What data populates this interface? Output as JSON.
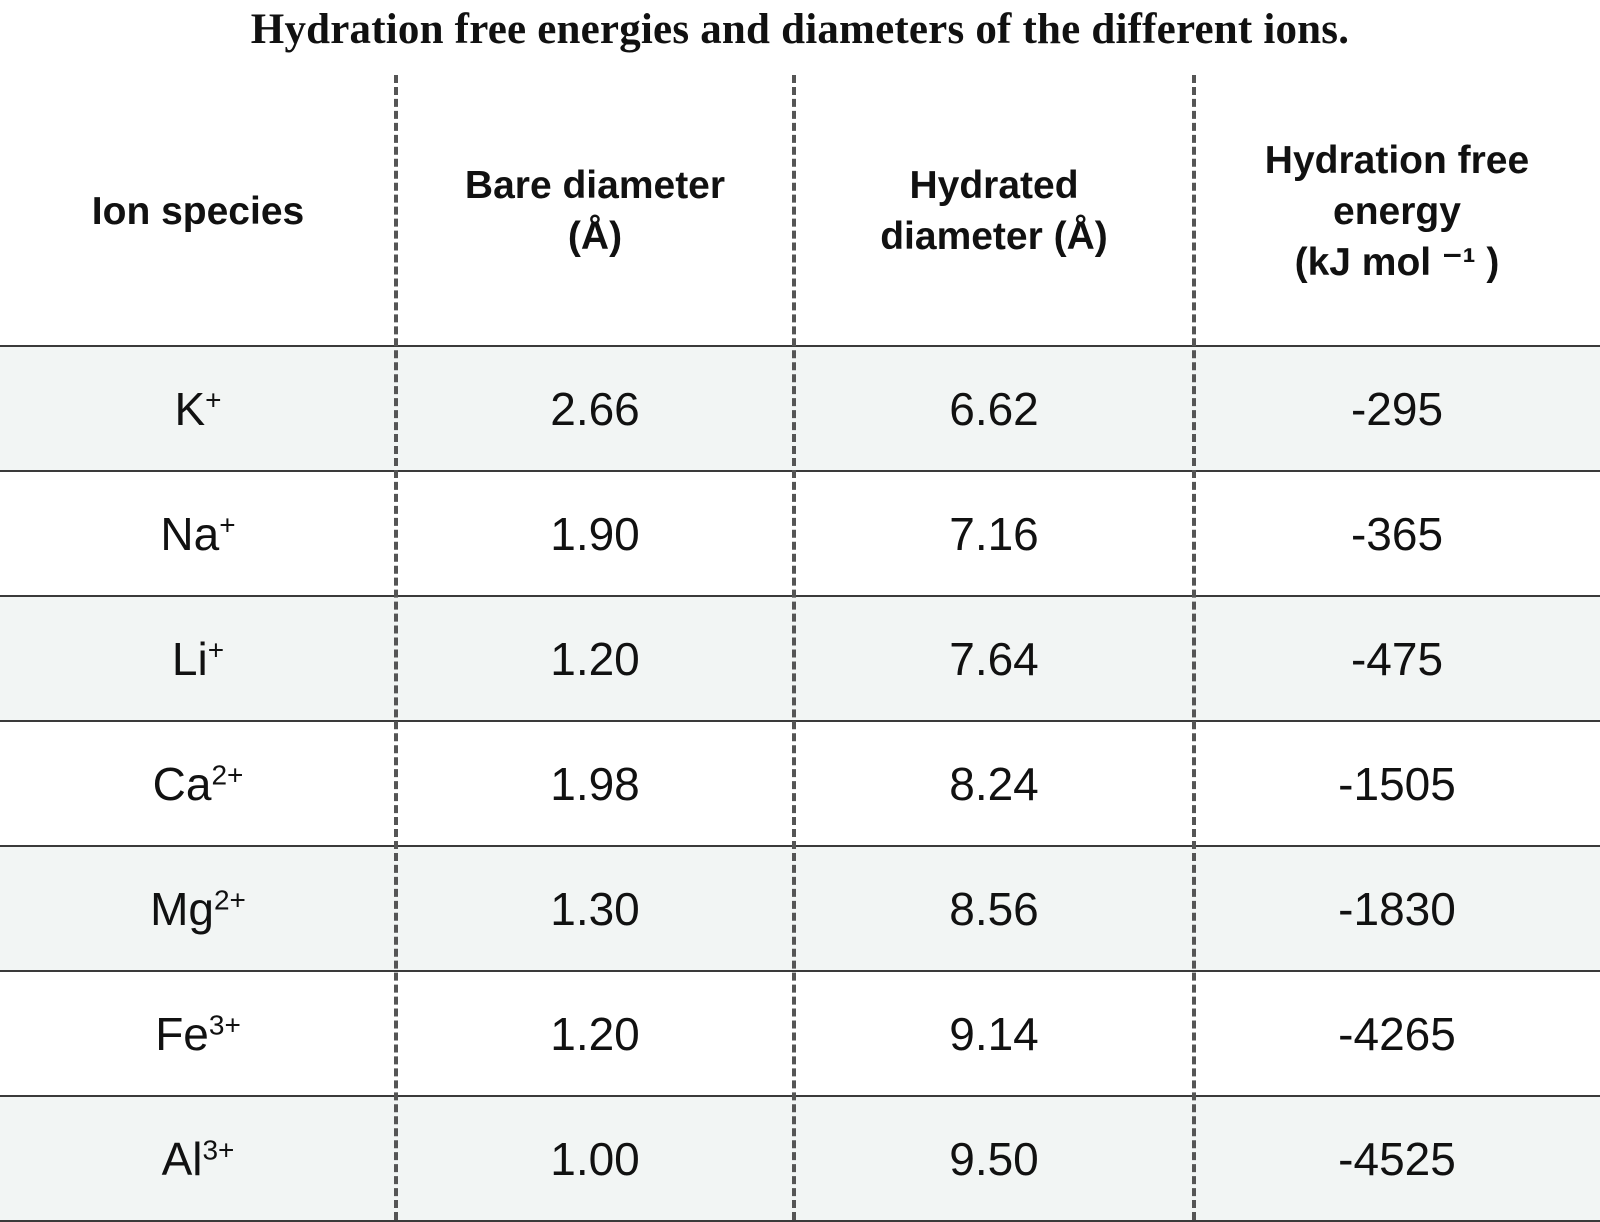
{
  "title": "Hydration free energies and diameters of the different ions.",
  "table": {
    "headers": [
      {
        "lines": [
          "Ion species"
        ]
      },
      {
        "lines": [
          "Bare diameter",
          "(Å)"
        ]
      },
      {
        "lines": [
          "Hydrated",
          "diameter (Å)"
        ]
      },
      {
        "lines": [
          "Hydration free",
          "energy",
          "(kJ mol ⁻¹ )"
        ]
      }
    ],
    "rows": [
      {
        "ion": "K",
        "charge": "+",
        "bare": "2.66",
        "hydrated": "6.62",
        "energy": "-295"
      },
      {
        "ion": "Na",
        "charge": "+",
        "bare": "1.90",
        "hydrated": "7.16",
        "energy": "-365"
      },
      {
        "ion": "Li",
        "charge": "+",
        "bare": "1.20",
        "hydrated": "7.64",
        "energy": "-475"
      },
      {
        "ion": "Ca",
        "charge": "2+",
        "bare": "1.98",
        "hydrated": "8.24",
        "energy": "-1505"
      },
      {
        "ion": "Mg",
        "charge": "2+",
        "bare": "1.30",
        "hydrated": "8.56",
        "energy": "-1830"
      },
      {
        "ion": "Fe",
        "charge": "3+",
        "bare": "1.20",
        "hydrated": "9.14",
        "energy": "-4265"
      },
      {
        "ion": "Al",
        "charge": "3+",
        "bare": "1.00",
        "hydrated": "9.50",
        "energy": "-4525"
      }
    ]
  },
  "colors": {
    "shaded_row": "#f2f5f4",
    "rule": "#3a3a3a",
    "divider": "#555555"
  }
}
